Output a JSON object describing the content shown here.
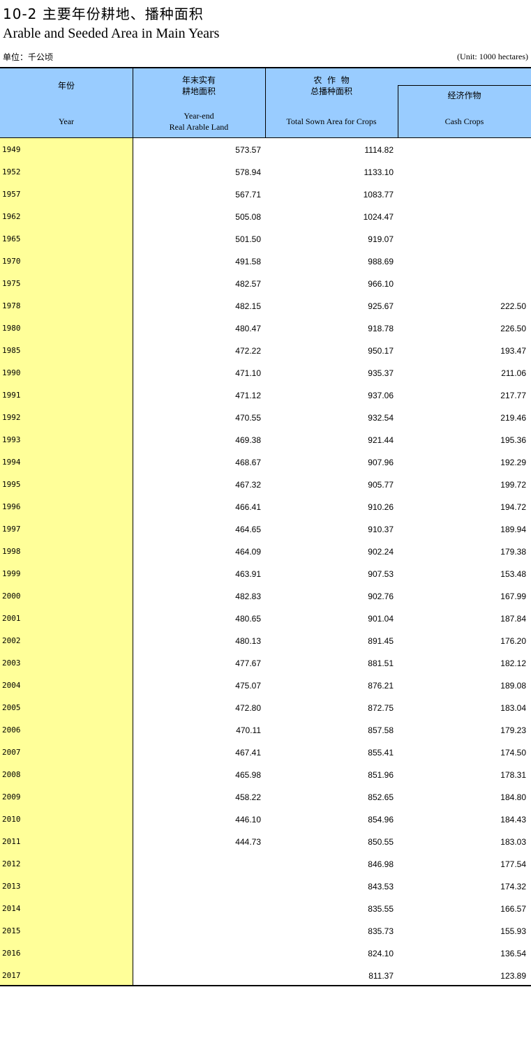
{
  "title_cn": "10-2 主要年份耕地、播种面积",
  "title_en": "Arable and Seeded Area in Main Years",
  "unit_cn": "单位：千公顷",
  "unit_en": "(Unit: 1000 hectares)",
  "headers": {
    "year_cn": "年份",
    "year_en": "Year",
    "arable_cn1": "年末实有",
    "arable_cn2": "耕地面积",
    "arable_en1": "Year-end",
    "arable_en2": "Real Arable Land",
    "sown_cn1": "农  作  物",
    "sown_cn2": "总播种面积",
    "sown_en": "Total Sown Area for Crops",
    "cash_cn": "经济作物",
    "cash_en": "Cash Crops"
  },
  "colors": {
    "header_bg": "#99ccff",
    "year_bg": "#ffff99"
  },
  "rows": [
    [
      "1949",
      "573.57",
      "1114.82",
      ""
    ],
    [
      "1952",
      "578.94",
      "1133.10",
      ""
    ],
    [
      "1957",
      "567.71",
      "1083.77",
      ""
    ],
    [
      "1962",
      "505.08",
      "1024.47",
      ""
    ],
    [
      "1965",
      "501.50",
      "919.07",
      ""
    ],
    [
      "1970",
      "491.58",
      "988.69",
      ""
    ],
    [
      "1975",
      "482.57",
      "966.10",
      ""
    ],
    [
      "1978",
      "482.15",
      "925.67",
      "222.50"
    ],
    [
      "1980",
      "480.47",
      "918.78",
      "226.50"
    ],
    [
      "1985",
      "472.22",
      "950.17",
      "193.47"
    ],
    [
      "1990",
      "471.10",
      "935.37",
      "211.06"
    ],
    [
      "1991",
      "471.12",
      "937.06",
      "217.77"
    ],
    [
      "1992",
      "470.55",
      "932.54",
      "219.46"
    ],
    [
      "1993",
      "469.38",
      "921.44",
      "195.36"
    ],
    [
      "1994",
      "468.67",
      "907.96",
      "192.29"
    ],
    [
      "1995",
      "467.32",
      "905.77",
      "199.72"
    ],
    [
      "1996",
      "466.41",
      "910.26",
      "194.72"
    ],
    [
      "1997",
      "464.65",
      "910.37",
      "189.94"
    ],
    [
      "1998",
      "464.09",
      "902.24",
      "179.38"
    ],
    [
      "1999",
      "463.91",
      "907.53",
      "153.48"
    ],
    [
      "2000",
      "482.83",
      "902.76",
      "167.99"
    ],
    [
      "2001",
      "480.65",
      "901.04",
      "187.84"
    ],
    [
      "2002",
      "480.13",
      "891.45",
      "176.20"
    ],
    [
      "2003",
      "477.67",
      "881.51",
      "182.12"
    ],
    [
      "2004",
      "475.07",
      "876.21",
      "189.08"
    ],
    [
      "2005",
      "472.80",
      "872.75",
      "183.04"
    ],
    [
      "2006",
      "470.11",
      "857.58",
      "179.23"
    ],
    [
      "2007",
      "467.41",
      "855.41",
      "174.50"
    ],
    [
      "2008",
      "465.98",
      "851.96",
      "178.31"
    ],
    [
      "2009",
      "458.22",
      "852.65",
      "184.80"
    ],
    [
      "2010",
      "446.10",
      "854.96",
      "184.43"
    ],
    [
      "2011",
      "444.73",
      "850.55",
      "183.03"
    ],
    [
      "2012",
      "",
      "846.98",
      "177.54"
    ],
    [
      "2013",
      "",
      "843.53",
      "174.32"
    ],
    [
      "2014",
      "",
      "835.55",
      "166.57"
    ],
    [
      "2015",
      "",
      "835.73",
      "155.93"
    ],
    [
      "2016",
      "",
      "824.10",
      "136.54"
    ],
    [
      "2017",
      "",
      "811.37",
      "123.89"
    ]
  ]
}
